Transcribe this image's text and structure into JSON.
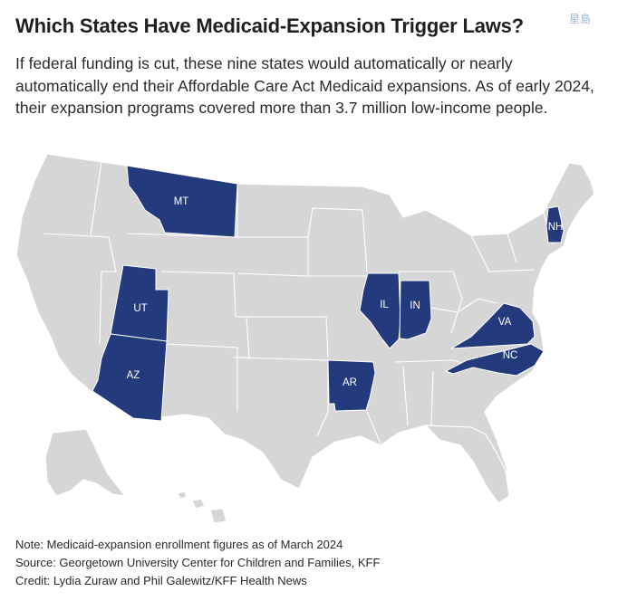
{
  "header": {
    "title": "Which States Have Medicaid-Expansion Trigger Laws?",
    "subtitle": "If federal funding is cut, these nine states would automatically or nearly automatically end their Affordable Care Act Medicaid expansions. As of early 2024, their expansion programs covered more than 3.7 million low-income people."
  },
  "watermark": "星島",
  "map": {
    "highlight_color": "#233b7d",
    "base_color": "#d6d6d6",
    "highlighted_states": [
      {
        "code": "MT",
        "label": "MT"
      },
      {
        "code": "UT",
        "label": "UT"
      },
      {
        "code": "AZ",
        "label": "AZ"
      },
      {
        "code": "AR",
        "label": "AR"
      },
      {
        "code": "IL",
        "label": "IL"
      },
      {
        "code": "IN",
        "label": "IN"
      },
      {
        "code": "VA",
        "label": "VA"
      },
      {
        "code": "NC",
        "label": "NC"
      },
      {
        "code": "NH",
        "label": "NH"
      }
    ]
  },
  "footer": {
    "note": "Note: Medicaid-expansion enrollment figures as of March 2024",
    "source": "Source: Georgetown University Center for Children and Families, KFF",
    "credit": "Credit: Lydia Zuraw and Phil Galewitz/KFF Health News"
  }
}
